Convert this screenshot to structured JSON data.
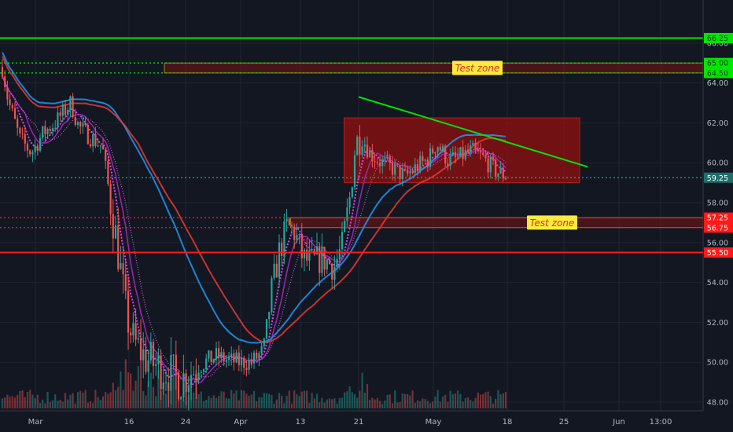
{
  "chart_data": {
    "type": "candlestick",
    "title": "",
    "x_ticks": [
      "Mar",
      "16",
      "24",
      "Apr",
      "13",
      "21",
      "May",
      "18",
      "25",
      "Jun",
      "13:00"
    ],
    "y_ticks": [
      48.0,
      50.0,
      52.0,
      54.0,
      56.0,
      58.0,
      60.0,
      62.0,
      64.0,
      66.0
    ],
    "y_tick_labels": [
      "48.00",
      "50.00",
      "52.00",
      "54.00",
      "56.00",
      "58.00",
      "60.00",
      "62.00",
      "64.00",
      "66.00"
    ],
    "ylim": [
      47.8,
      68.2
    ],
    "grid": true,
    "price_levels": [
      {
        "label": "66.25",
        "value": 66.25,
        "color": "#00e600",
        "style": "solid"
      },
      {
        "label": "65.00",
        "value": 65.0,
        "color": "#00e600",
        "style": "dotted"
      },
      {
        "label": "64.50",
        "value": 64.5,
        "color": "#00e600",
        "style": "dotted"
      },
      {
        "label": "59.25",
        "value": 59.25,
        "color": "#26a69a",
        "style": "dotted"
      },
      {
        "label": "57.25",
        "value": 57.25,
        "color": "#ff1a1a",
        "style": "dotted"
      },
      {
        "label": "56.75",
        "value": 56.75,
        "color": "#ff1a1a",
        "style": "dotted"
      },
      {
        "label": "56.00",
        "value": 56.0,
        "color": "#8a8a8a",
        "style": "none"
      },
      {
        "label": "55.50",
        "value": 55.5,
        "color": "#ff1a1a",
        "style": "solid"
      }
    ],
    "zones": [
      {
        "label": "Test zone",
        "x_from": "Mar 20",
        "x_to": "Jun 13",
        "y_low": 64.5,
        "y_high": 65.0
      },
      {
        "label": "Test zone",
        "x_from": "Apr 11",
        "x_to": "Jun 13",
        "y_low": 56.75,
        "y_high": 57.25
      },
      {
        "label": "",
        "x_from": "Apr 19",
        "x_to": "May 27",
        "y_low": 59.0,
        "y_high": 62.25
      }
    ],
    "trendline": {
      "from": {
        "x": "Apr 21",
        "y": 63.3
      },
      "to": {
        "x": "May 28",
        "y": 59.8
      },
      "color": "#00e600"
    },
    "current_price": 59.25,
    "colors": {
      "background": "#131722",
      "up": "#26a69a",
      "down": "#ef5350",
      "grid": "#1f2433"
    }
  }
}
